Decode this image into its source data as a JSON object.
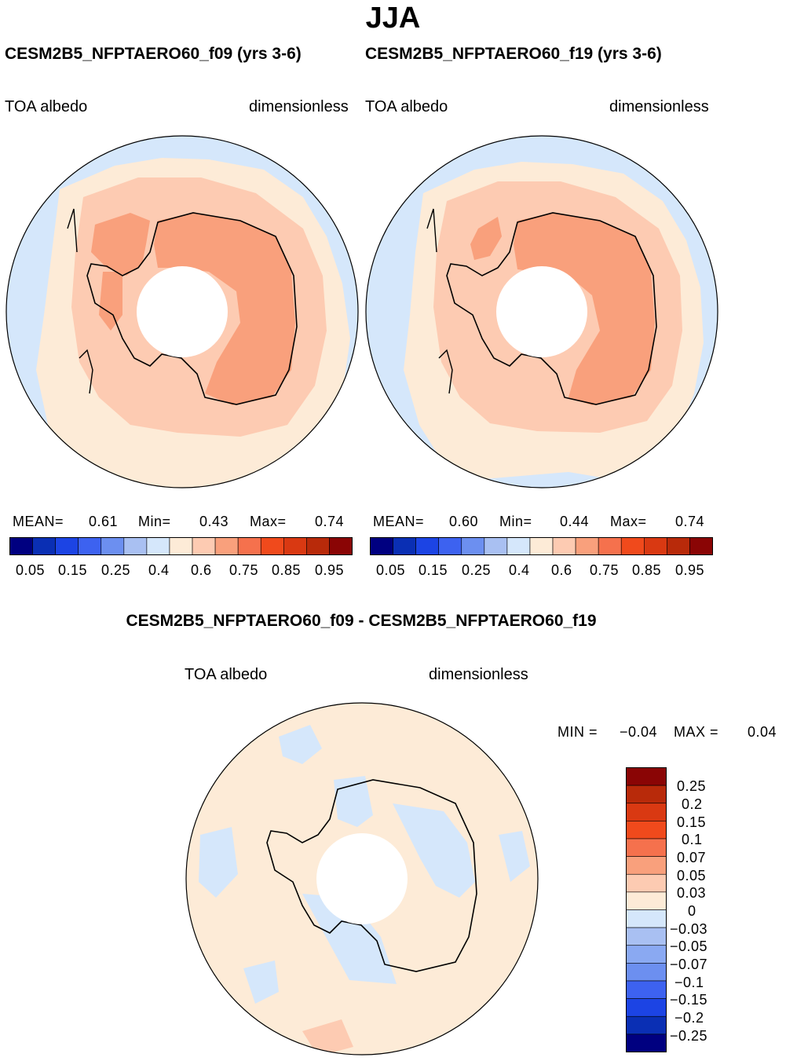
{
  "title": "JJA",
  "panels": [
    {
      "case_title": "CESM2B5_NFPTAERO60_f09 (yrs 3-6)",
      "variable": "TOA albedo",
      "units": "dimensionless",
      "stats": {
        "mean_label": "MEAN=",
        "mean": "0.61",
        "min_label": "Min=",
        "min": "0.43",
        "max_label": "Max=",
        "max": "0.74"
      }
    },
    {
      "case_title": "CESM2B5_NFPTAERO60_f19 (yrs 3-6)",
      "variable": "TOA albedo",
      "units": "dimensionless",
      "stats": {
        "mean_label": "MEAN=",
        "mean": "0.60",
        "min_label": "Min=",
        "min": "0.44",
        "max_label": "Max=",
        "max": "0.74"
      }
    }
  ],
  "colorbar": {
    "colors": [
      "#000080",
      "#0a2fb4",
      "#1c44e4",
      "#3d62f0",
      "#6c8ff0",
      "#a9c0f2",
      "#d5e7fb",
      "#fdebd7",
      "#fdcbb2",
      "#f9a07c",
      "#f5714d",
      "#f04a1c",
      "#d93912",
      "#b82a0a",
      "#8a0505"
    ],
    "labels": [
      "0.05",
      "0.15",
      "0.25",
      "0.4",
      "0.6",
      "0.75",
      "0.85",
      "0.95"
    ]
  },
  "difference": {
    "title": "CESM2B5_NFPTAERO60_f09 - CESM2B5_NFPTAERO60_f19",
    "variable": "TOA albedo",
    "units": "dimensionless",
    "min_label": "MIN =",
    "min": "−0.04",
    "max_label": "MAX =",
    "max": "0.04",
    "colorbar_colors": [
      "#8a0505",
      "#b82a0a",
      "#d93912",
      "#f04a1c",
      "#f5714d",
      "#f9a07c",
      "#fdcbb2",
      "#fdebd7",
      "#d5e7fb",
      "#a9c0f2",
      "#8aa9f2",
      "#6c8ff0",
      "#3d62f0",
      "#1c44e4",
      "#0a2fb4",
      "#000080"
    ],
    "colorbar_labels": [
      "0.25",
      "0.2",
      "0.15",
      "0.1",
      "0.07",
      "0.05",
      "0.03",
      "0",
      "−0.03",
      "−0.05",
      "−0.07",
      "−0.1",
      "−0.15",
      "−0.2",
      "−0.25"
    ]
  }
}
